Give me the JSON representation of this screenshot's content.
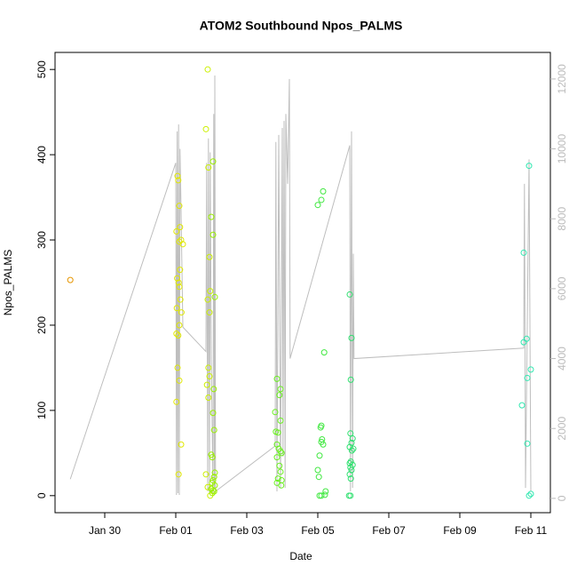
{
  "chart_data": {
    "type": "scatter",
    "title": "ATOM2 Southbound Npos_PALMS",
    "x_label": "Date",
    "y_label": "Npos_PALMS",
    "xlim": [
      28.6,
      42.55
    ],
    "xticks": [
      {
        "value": 30,
        "label": "Jan 30"
      },
      {
        "value": 32,
        "label": "Feb 01"
      },
      {
        "value": 34,
        "label": "Feb 03"
      },
      {
        "value": 36,
        "label": "Feb 05"
      },
      {
        "value": 38,
        "label": "Feb 07"
      },
      {
        "value": 40,
        "label": "Feb 09"
      },
      {
        "value": 42,
        "label": "Feb 11"
      }
    ],
    "ylim": [
      -20,
      520
    ],
    "yticks": [
      0,
      100,
      200,
      300,
      400,
      500
    ],
    "y2lim": [
      -410,
      12760
    ],
    "y2ticks": [
      0,
      2000,
      4000,
      6000,
      8000,
      10000,
      12000
    ],
    "series": [
      {
        "color": "#bebebe",
        "axis": "y2",
        "style": "line",
        "x": [
          29.03,
          32.0,
          32.02,
          32.04,
          32.06,
          32.08,
          32.1,
          32.12,
          32.14,
          32.2,
          32.85,
          32.87,
          32.9,
          32.92,
          32.95,
          32.97,
          33.0,
          33.05,
          33.07,
          33.09,
          33.1,
          33.12,
          34.8,
          34.82,
          34.85,
          34.9,
          34.95,
          35.0,
          35.02,
          35.05,
          35.08,
          35.1,
          35.15,
          35.2,
          35.22,
          36.9,
          36.92,
          36.95,
          36.98,
          37.0,
          37.02,
          41.8,
          41.82,
          41.85,
          41.95,
          42.0
        ],
        "values": [
          550,
          9600,
          100,
          10500,
          150,
          10700,
          100,
          10000,
          8800,
          4900,
          4200,
          9600,
          200,
          10300,
          150,
          9900,
          4000,
          150,
          11000,
          300,
          12100,
          200,
          1500,
          10200,
          200,
          10400,
          300,
          10600,
          1200,
          10800,
          300,
          11000,
          9000,
          12000,
          4000,
          10100,
          200,
          10500,
          300,
          7000,
          4000,
          4300,
          9000,
          300,
          9700,
          200
        ]
      },
      {
        "color": "#e69500",
        "style": "points",
        "x": [
          29.03
        ],
        "values": [
          253
        ]
      },
      {
        "color": "#e0e800",
        "style": "points",
        "x": [
          32.05,
          32.07,
          32.1,
          32.12,
          32.02,
          32.15,
          32.1,
          32.2,
          32.12,
          32.04,
          32.08,
          32.1,
          32.13,
          32.03,
          32.16,
          32.1,
          32.02,
          32.07,
          32.05,
          32.1,
          32.02,
          32.15,
          32.08
        ],
        "values": [
          375,
          370,
          340,
          315,
          310,
          300,
          298,
          295,
          265,
          255,
          250,
          245,
          230,
          220,
          215,
          200,
          190,
          188,
          150,
          135,
          110,
          60,
          25
        ]
      },
      {
        "color": "#ccf000",
        "style": "points",
        "x": [
          32.9,
          32.85,
          32.92,
          32.95,
          32.97,
          32.9,
          32.95,
          32.92,
          32.95,
          32.88,
          32.92,
          32.85,
          32.9,
          32.97
        ],
        "values": [
          500,
          430,
          385,
          280,
          240,
          230,
          215,
          150,
          140,
          130,
          115,
          25,
          10,
          0
        ]
      },
      {
        "color": "#9af000",
        "style": "points",
        "x": [
          33.05,
          33.0,
          33.05,
          33.1,
          33.07,
          33.05,
          33.08,
          33.0,
          33.03,
          33.1,
          33.08,
          33.05,
          33.02,
          33.1,
          33.0,
          33.05,
          33.08,
          33.03
        ],
        "values": [
          392,
          327,
          306,
          233,
          125,
          97,
          77,
          48,
          45,
          27,
          22,
          18,
          15,
          12,
          8,
          6,
          5,
          3
        ]
      },
      {
        "color": "#6af020",
        "style": "points",
        "x": [
          34.85,
          34.95,
          34.92,
          34.8,
          34.95,
          34.82,
          34.88,
          34.85,
          34.9,
          34.95,
          34.98,
          34.85,
          34.92,
          34.95,
          34.88,
          34.98,
          34.85,
          34.97
        ],
        "values": [
          137,
          125,
          118,
          98,
          88,
          75,
          74,
          60,
          55,
          52,
          50,
          45,
          35,
          28,
          20,
          18,
          15,
          12
        ]
      },
      {
        "color": "#40e840",
        "style": "points",
        "x": [
          36.15,
          36.1,
          36.0,
          36.18,
          36.1,
          36.08,
          36.12,
          36.1,
          36.15,
          36.05,
          36.0,
          36.03,
          36.22,
          36.2,
          36.05,
          36.1
        ],
        "values": [
          357,
          347,
          341,
          168,
          82,
          80,
          66,
          63,
          60,
          47,
          30,
          22,
          5,
          1,
          0,
          0
        ]
      },
      {
        "color": "#30e070",
        "style": "points",
        "x": [
          36.9,
          36.95,
          36.93,
          36.92,
          36.98,
          36.95,
          36.9,
          37.0,
          36.96,
          36.93,
          36.9,
          36.98,
          36.92,
          36.95,
          36.9,
          36.93,
          36.88,
          36.92
        ],
        "values": [
          236,
          185,
          136,
          73,
          67,
          62,
          57,
          55,
          53,
          40,
          38,
          36,
          33,
          30,
          25,
          20,
          0,
          0
        ]
      },
      {
        "color": "#30e8b0",
        "style": "points",
        "x": [
          41.95,
          41.8,
          41.88,
          41.8,
          42.0,
          41.9,
          41.75,
          41.9,
          42.0,
          41.95
        ],
        "values": [
          387,
          285,
          184,
          180,
          148,
          138,
          106,
          61,
          2,
          0
        ]
      }
    ]
  }
}
